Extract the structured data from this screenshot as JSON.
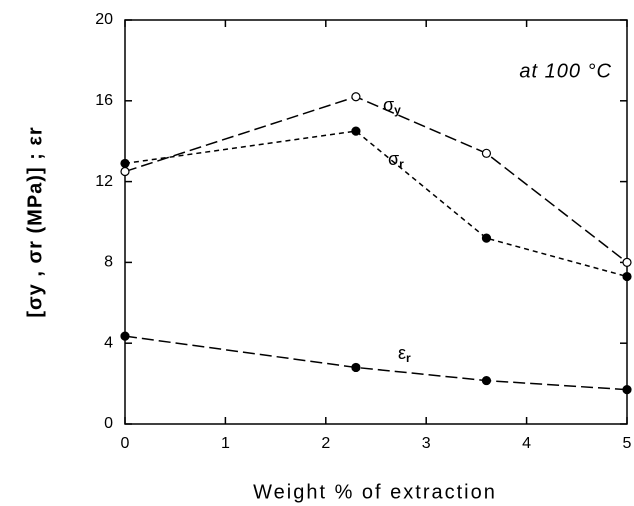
{
  "chart_data": {
    "type": "line",
    "x_label": "Weight % of extraction",
    "y_label": "[σy , σr (MPa)] ; εr",
    "annotation": "at 100 °C",
    "x": [
      0,
      2.3,
      3.6,
      5
    ],
    "series": [
      {
        "name": "σy",
        "color": "#000000",
        "marker": "open",
        "linestyle": "long-dash",
        "values": [
          12.5,
          16.2,
          13.4,
          8.0
        ]
      },
      {
        "name": "σr",
        "color": "#000000",
        "marker": "filled",
        "linestyle": "short-dash",
        "values": [
          12.9,
          14.5,
          9.2,
          7.3
        ]
      },
      {
        "name": "εr",
        "color": "#000000",
        "marker": "filled",
        "linestyle": "long-dash",
        "values": [
          4.35,
          2.8,
          2.15,
          1.7
        ]
      }
    ],
    "xlim": [
      0,
      5
    ],
    "xticks": [
      0,
      1,
      2,
      3,
      4,
      5
    ],
    "ylim": [
      0,
      20
    ],
    "yticks": [
      0,
      4,
      8,
      12,
      16,
      20
    ],
    "grid": false
  }
}
